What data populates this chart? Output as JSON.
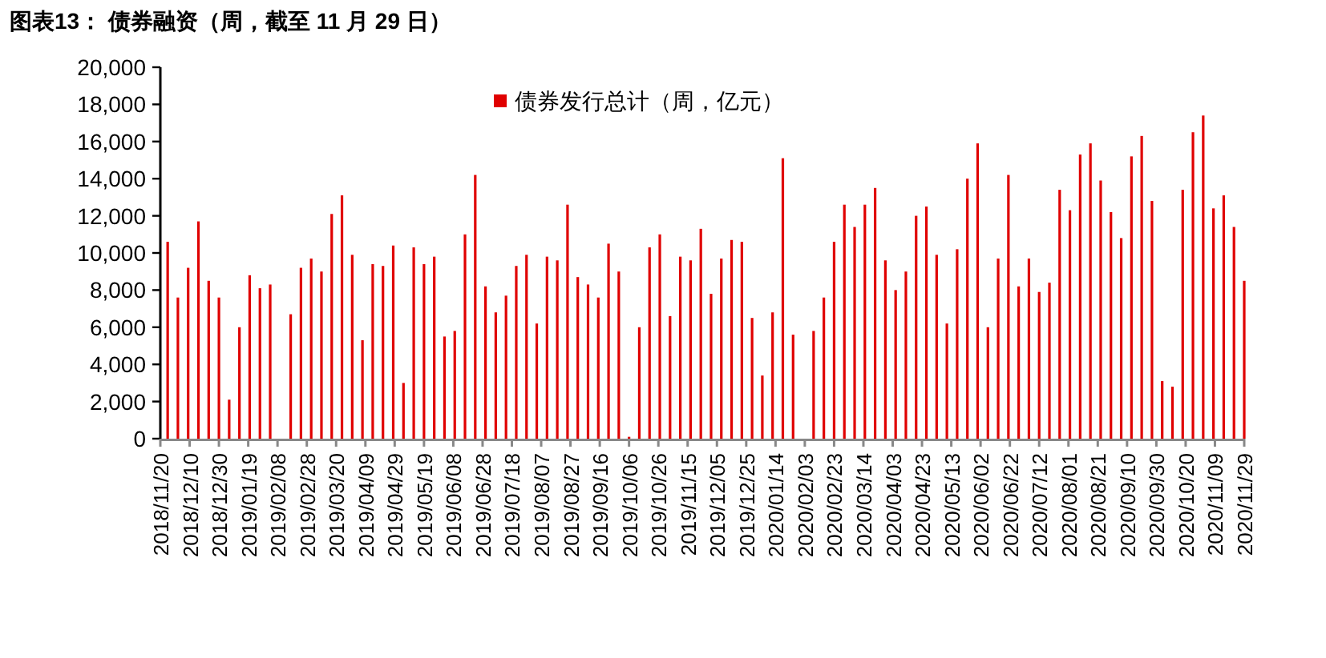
{
  "chart_data": {
    "type": "bar",
    "title": "图表13：  债券融资（周，截至 11 月 29 日）",
    "legend": "top",
    "x": [
      "2018-11-25",
      "2018-12-02",
      "2018-12-09",
      "2018-12-16",
      "2018-12-23",
      "2018-12-30",
      "2019-01-06",
      "2019-01-13",
      "2019-01-20",
      "2019-01-27",
      "2019-02-03",
      "2019-02-10",
      "2019-02-17",
      "2019-02-24",
      "2019-03-03",
      "2019-03-10",
      "2019-03-17",
      "2019-03-24",
      "2019-03-31",
      "2019-04-07",
      "2019-04-14",
      "2019-04-21",
      "2019-04-28",
      "2019-05-05",
      "2019-05-12",
      "2019-05-19",
      "2019-05-26",
      "2019-06-02",
      "2019-06-09",
      "2019-06-16",
      "2019-06-23",
      "2019-06-30",
      "2019-07-07",
      "2019-07-14",
      "2019-07-21",
      "2019-07-28",
      "2019-08-04",
      "2019-08-11",
      "2019-08-18",
      "2019-08-25",
      "2019-09-01",
      "2019-09-08",
      "2019-09-15",
      "2019-09-22",
      "2019-09-29",
      "2019-10-06",
      "2019-10-13",
      "2019-10-20",
      "2019-10-27",
      "2019-11-03",
      "2019-11-10",
      "2019-11-17",
      "2019-11-24",
      "2019-12-01",
      "2019-12-08",
      "2019-12-15",
      "2019-12-22",
      "2019-12-29",
      "2020-01-05",
      "2020-01-12",
      "2020-01-19",
      "2020-01-26",
      "2020-02-02",
      "2020-02-09",
      "2020-02-16",
      "2020-02-23",
      "2020-03-01",
      "2020-03-08",
      "2020-03-15",
      "2020-03-22",
      "2020-03-29",
      "2020-04-05",
      "2020-04-12",
      "2020-04-19",
      "2020-04-26",
      "2020-05-03",
      "2020-05-10",
      "2020-05-17",
      "2020-05-24",
      "2020-05-31",
      "2020-06-07",
      "2020-06-14",
      "2020-06-21",
      "2020-06-28",
      "2020-07-05",
      "2020-07-12",
      "2020-07-19",
      "2020-07-26",
      "2020-08-02",
      "2020-08-09",
      "2020-08-16",
      "2020-08-23",
      "2020-08-30",
      "2020-09-06",
      "2020-09-13",
      "2020-09-20",
      "2020-09-27",
      "2020-10-04",
      "2020-10-11",
      "2020-10-18",
      "2020-10-25",
      "2020-11-01",
      "2020-11-08",
      "2020-11-15",
      "2020-11-22",
      "2020-11-29"
    ],
    "series": [
      {
        "name": "债券发行总计（周，亿元）",
        "color": "#e00000",
        "values": [
          10600,
          7600,
          9200,
          11700,
          8500,
          7600,
          2100,
          6000,
          8800,
          8100,
          8300,
          0,
          6700,
          9200,
          9700,
          9000,
          12100,
          13100,
          9900,
          5300,
          9400,
          9300,
          10400,
          3000,
          10300,
          9400,
          9800,
          5500,
          5800,
          11000,
          14200,
          8200,
          6800,
          7700,
          9300,
          9900,
          6200,
          9800,
          9600,
          12600,
          8700,
          8300,
          7600,
          10500,
          9000,
          100,
          6000,
          10300,
          11000,
          6600,
          9800,
          9600,
          11300,
          7800,
          9700,
          10700,
          10600,
          6500,
          3400,
          6800,
          15100,
          5600,
          0,
          5800,
          7600,
          10600,
          12600,
          11400,
          12600,
          13500,
          9600,
          8000,
          9000,
          12000,
          12500,
          9900,
          6200,
          10200,
          14000,
          15900,
          6000,
          9700,
          14200,
          8200,
          9700,
          7900,
          8400,
          13400,
          12300,
          15300,
          15900,
          13900,
          12200,
          10800,
          15200,
          16300,
          12800,
          3100,
          2800,
          13400,
          16500,
          17400,
          12400,
          13100,
          11400,
          8500
        ]
      }
    ],
    "xlim": [
      "2018-11-20",
      "2020-11-29"
    ],
    "xticks": [
      {
        "value": "2018-11-20",
        "label": "2018/11/20"
      },
      {
        "value": "2018-12-10",
        "label": "2018/12/10"
      },
      {
        "value": "2018-12-30",
        "label": "2018/12/30"
      },
      {
        "value": "2019-01-19",
        "label": "2019/01/19"
      },
      {
        "value": "2019-02-08",
        "label": "2019/02/08"
      },
      {
        "value": "2019-02-28",
        "label": "2019/02/28"
      },
      {
        "value": "2019-03-20",
        "label": "2019/03/20"
      },
      {
        "value": "2019-04-09",
        "label": "2019/04/09"
      },
      {
        "value": "2019-04-29",
        "label": "2019/04/29"
      },
      {
        "value": "2019-05-19",
        "label": "2019/05/19"
      },
      {
        "value": "2019-06-08",
        "label": "2019/06/08"
      },
      {
        "value": "2019-06-28",
        "label": "2019/06/28"
      },
      {
        "value": "2019-07-18",
        "label": "2019/07/18"
      },
      {
        "value": "2019-08-07",
        "label": "2019/08/07"
      },
      {
        "value": "2019-08-27",
        "label": "2019/08/27"
      },
      {
        "value": "2019-09-16",
        "label": "2019/09/16"
      },
      {
        "value": "2019-10-06",
        "label": "2019/10/06"
      },
      {
        "value": "2019-10-26",
        "label": "2019/10/26"
      },
      {
        "value": "2019-11-15",
        "label": "2019/11/15"
      },
      {
        "value": "2019-12-05",
        "label": "2019/12/05"
      },
      {
        "value": "2019-12-25",
        "label": "2019/12/25"
      },
      {
        "value": "2020-01-14",
        "label": "2020/01/14"
      },
      {
        "value": "2020-02-03",
        "label": "2020/02/03"
      },
      {
        "value": "2020-02-23",
        "label": "2020/02/23"
      },
      {
        "value": "2020-03-14",
        "label": "2020/03/14"
      },
      {
        "value": "2020-04-03",
        "label": "2020/04/03"
      },
      {
        "value": "2020-04-23",
        "label": "2020/04/23"
      },
      {
        "value": "2020-05-13",
        "label": "2020/05/13"
      },
      {
        "value": "2020-06-02",
        "label": "2020/06/02"
      },
      {
        "value": "2020-06-22",
        "label": "2020/06/22"
      },
      {
        "value": "2020-07-12",
        "label": "2020/07/12"
      },
      {
        "value": "2020-08-01",
        "label": "2020/08/01"
      },
      {
        "value": "2020-08-21",
        "label": "2020/08/21"
      },
      {
        "value": "2020-09-10",
        "label": "2020/09/10"
      },
      {
        "value": "2020-09-30",
        "label": "2020/09/30"
      },
      {
        "value": "2020-10-20",
        "label": "2020/10/20"
      },
      {
        "value": "2020-11-09",
        "label": "2020/11/09"
      },
      {
        "value": "2020-11-29",
        "label": "2020/11/29"
      }
    ],
    "ylim": [
      0,
      20000
    ],
    "yticks": [
      {
        "value": 0,
        "label": "0"
      },
      {
        "value": 2000,
        "label": "2,000"
      },
      {
        "value": 4000,
        "label": "4,000"
      },
      {
        "value": 6000,
        "label": "6,000"
      },
      {
        "value": 8000,
        "label": "8,000"
      },
      {
        "value": 10000,
        "label": "10,000"
      },
      {
        "value": 12000,
        "label": "12,000"
      },
      {
        "value": 14000,
        "label": "14,000"
      },
      {
        "value": 16000,
        "label": "16,000"
      },
      {
        "value": 18000,
        "label": "18,000"
      },
      {
        "value": 20000,
        "label": "20,000"
      }
    ]
  }
}
